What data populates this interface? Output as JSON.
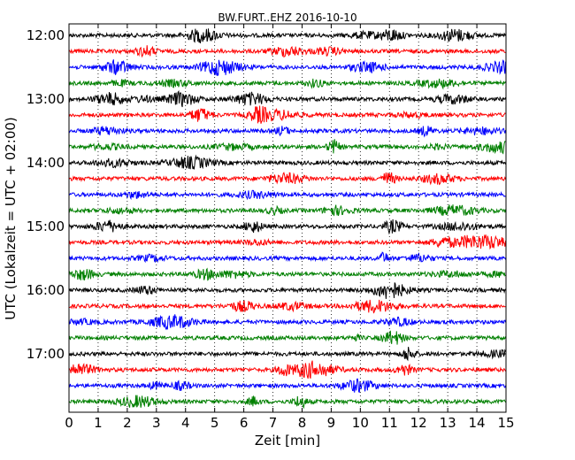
{
  "chart_data": {
    "type": "line",
    "title": "BW.FURT..EHZ 2016-10-10",
    "xlabel": "Zeit  [min]",
    "ylabel": "UTC (Lokalzeit = UTC + 02:00)",
    "xlim": [
      0,
      15
    ],
    "x_ticks": [
      "0",
      "1",
      "2",
      "3",
      "4",
      "5",
      "6",
      "7",
      "8",
      "9",
      "10",
      "11",
      "12",
      "13",
      "14",
      "15"
    ],
    "y_ticks": [
      "12:00",
      "13:00",
      "14:00",
      "15:00",
      "16:00",
      "17:00"
    ],
    "grid": "vertical dotted",
    "trace_colors": [
      "#000000",
      "#ff0000",
      "#0000ff",
      "#008000"
    ],
    "trace_start_hour": 12,
    "trace_count": 24
  }
}
